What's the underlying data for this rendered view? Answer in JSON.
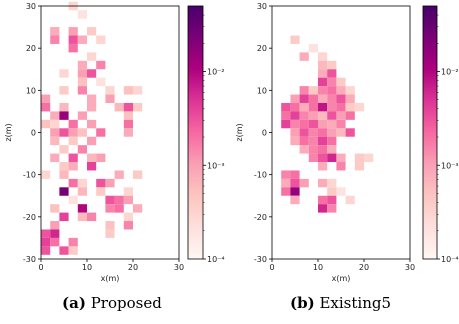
{
  "captions": [
    {
      "tag": "(a)",
      "text": "Proposed"
    },
    {
      "tag": "(b)",
      "text": "Existing5"
    }
  ],
  "chart_data": [
    {
      "type": "heatmap",
      "title": "",
      "xlabel": "x(m)",
      "ylabel": "z(m)",
      "xlim": [
        0,
        30
      ],
      "ylim": [
        -30,
        30
      ],
      "xticks": [
        "0",
        "10",
        "20",
        "30"
      ],
      "yticks": [
        "30",
        "20",
        "10",
        "0",
        "-10",
        "-20",
        "-30"
      ],
      "cell_size": 2,
      "colorbar": {
        "scale": "log",
        "min": 0.0001,
        "max": 0.05,
        "tick_values": [
          0.0001,
          0.001,
          0.01
        ],
        "tick_labels": [
          "10⁻⁴",
          "10⁻³",
          "10⁻²"
        ]
      },
      "cells": [
        [
          6,
          29,
          0.0003
        ],
        [
          8,
          27,
          0.0002
        ],
        [
          2,
          23,
          0.0008
        ],
        [
          6,
          23,
          0.001
        ],
        [
          10,
          23,
          0.0004
        ],
        [
          2,
          21,
          0.0015
        ],
        [
          6,
          21,
          0.003
        ],
        [
          8,
          21,
          0.0008
        ],
        [
          12,
          21,
          0.0003
        ],
        [
          6,
          19,
          0.002
        ],
        [
          10,
          17,
          0.0003
        ],
        [
          8,
          15,
          0.0008
        ],
        [
          12,
          15,
          0.0015
        ],
        [
          4,
          13,
          0.0003
        ],
        [
          8,
          13,
          0.001
        ],
        [
          10,
          13,
          0.003
        ],
        [
          8,
          11,
          0.0005
        ],
        [
          12,
          11,
          0.0002
        ],
        [
          4,
          9,
          0.0004
        ],
        [
          8,
          9,
          0.0015
        ],
        [
          14,
          9,
          0.0003
        ],
        [
          18,
          9,
          0.0005
        ],
        [
          20,
          9,
          0.0003
        ],
        [
          0,
          7,
          0.001
        ],
        [
          10,
          7,
          0.0008
        ],
        [
          14,
          7,
          0.001
        ],
        [
          0,
          5,
          0.002
        ],
        [
          4,
          5,
          0.0006
        ],
        [
          10,
          5,
          0.0008
        ],
        [
          16,
          5,
          0.0006
        ],
        [
          18,
          5,
          0.003
        ],
        [
          20,
          5,
          0.0004
        ],
        [
          2,
          3,
          0.0008
        ],
        [
          4,
          3,
          0.015
        ],
        [
          8,
          3,
          0.001
        ],
        [
          18,
          3,
          0.0005
        ],
        [
          0,
          1,
          0.0005
        ],
        [
          2,
          1,
          0.0003
        ],
        [
          6,
          1,
          0.002
        ],
        [
          10,
          1,
          0.001
        ],
        [
          18,
          1,
          0.002
        ],
        [
          2,
          -1,
          0.001
        ],
        [
          4,
          -1,
          0.003
        ],
        [
          6,
          -1,
          0.001
        ],
        [
          8,
          -1,
          0.0005
        ],
        [
          12,
          -1,
          0.002
        ],
        [
          18,
          -1,
          0.0008
        ],
        [
          2,
          -3,
          0.0006
        ],
        [
          6,
          -3,
          0.0004
        ],
        [
          10,
          -3,
          0.001
        ],
        [
          4,
          -5,
          0.0004
        ],
        [
          8,
          -5,
          0.0015
        ],
        [
          2,
          -7,
          0.0008
        ],
        [
          6,
          -7,
          0.003
        ],
        [
          10,
          -7,
          0.0006
        ],
        [
          12,
          -7,
          0.001
        ],
        [
          4,
          -9,
          0.0004
        ],
        [
          6,
          -9,
          0.0008
        ],
        [
          10,
          -9,
          0.004
        ],
        [
          0,
          -11,
          0.0003
        ],
        [
          4,
          -11,
          0.0006
        ],
        [
          16,
          -11,
          0.0008
        ],
        [
          20,
          -11,
          0.0004
        ],
        [
          6,
          -13,
          0.002
        ],
        [
          8,
          -13,
          0.0003
        ],
        [
          12,
          -13,
          0.003
        ],
        [
          14,
          -13,
          0.001
        ],
        [
          4,
          -15,
          0.025
        ],
        [
          8,
          -15,
          0.0006
        ],
        [
          12,
          -15,
          0.0004
        ],
        [
          18,
          -15,
          0.0003
        ],
        [
          6,
          -17,
          0.0002
        ],
        [
          14,
          -17,
          0.003
        ],
        [
          16,
          -17,
          0.002
        ],
        [
          18,
          -17,
          0.001
        ],
        [
          2,
          -19,
          0.0005
        ],
        [
          8,
          -19,
          0.01
        ],
        [
          14,
          -19,
          0.0015
        ],
        [
          16,
          -19,
          0.002
        ],
        [
          20,
          -19,
          0.0008
        ],
        [
          4,
          -21,
          0.004
        ],
        [
          8,
          -21,
          0.0006
        ],
        [
          10,
          -21,
          0.0015
        ],
        [
          18,
          -21,
          0.0003
        ],
        [
          2,
          -23,
          0.001
        ],
        [
          14,
          -23,
          0.0005
        ],
        [
          18,
          -23,
          0.0015
        ],
        [
          0,
          -25,
          0.003
        ],
        [
          2,
          -25,
          0.006
        ],
        [
          14,
          -25,
          0.0004
        ],
        [
          0,
          -27,
          0.004
        ],
        [
          2,
          -27,
          0.002
        ],
        [
          6,
          -27,
          0.0015
        ],
        [
          0,
          -29,
          0.003
        ],
        [
          4,
          -29,
          0.003
        ],
        [
          6,
          -29,
          0.0004
        ]
      ]
    },
    {
      "type": "heatmap",
      "title": "",
      "xlabel": "x(m)",
      "ylabel": "z(m)",
      "xlim": [
        0,
        30
      ],
      "ylim": [
        -30,
        30
      ],
      "xticks": [
        "0",
        "10",
        "20",
        "30"
      ],
      "yticks": [
        "30",
        "20",
        "10",
        "0",
        "-10",
        "-20",
        "-30"
      ],
      "cell_size": 2,
      "colorbar": {
        "scale": "log",
        "min": 0.0001,
        "max": 0.05,
        "tick_values": [
          0.0001,
          0.001,
          0.01
        ],
        "tick_labels": [
          "10⁻⁴",
          "10⁻³",
          "10⁻²"
        ]
      },
      "cells": [
        [
          4,
          21,
          0.0004
        ],
        [
          6,
          17,
          0.0008
        ],
        [
          8,
          19,
          0.0002
        ],
        [
          10,
          17,
          0.0003
        ],
        [
          10,
          15,
          0.0006
        ],
        [
          12,
          15,
          0.0004
        ],
        [
          10,
          13,
          0.0008
        ],
        [
          12,
          13,
          0.003
        ],
        [
          10,
          11,
          0.004
        ],
        [
          12,
          11,
          0.0015
        ],
        [
          14,
          11,
          0.0004
        ],
        [
          6,
          9,
          0.0015
        ],
        [
          8,
          9,
          0.0004
        ],
        [
          10,
          9,
          0.0015
        ],
        [
          12,
          9,
          0.002
        ],
        [
          14,
          9,
          0.0008
        ],
        [
          16,
          9,
          0.0003
        ],
        [
          4,
          7,
          0.001
        ],
        [
          6,
          7,
          0.004
        ],
        [
          8,
          7,
          0.002
        ],
        [
          10,
          7,
          0.0008
        ],
        [
          12,
          7,
          0.0015
        ],
        [
          14,
          7,
          0.003
        ],
        [
          16,
          7,
          0.0008
        ],
        [
          2,
          5,
          0.003
        ],
        [
          4,
          5,
          0.002
        ],
        [
          6,
          5,
          0.0008
        ],
        [
          8,
          5,
          0.002
        ],
        [
          10,
          5,
          0.008
        ],
        [
          12,
          5,
          0.0015
        ],
        [
          14,
          5,
          0.002
        ],
        [
          16,
          5,
          0.0004
        ],
        [
          18,
          5,
          0.0003
        ],
        [
          2,
          3,
          0.002
        ],
        [
          4,
          3,
          0.004
        ],
        [
          6,
          3,
          0.0015
        ],
        [
          8,
          3,
          0.001
        ],
        [
          10,
          3,
          0.0006
        ],
        [
          12,
          3,
          0.003
        ],
        [
          14,
          3,
          0.001
        ],
        [
          16,
          3,
          0.002
        ],
        [
          2,
          1,
          0.004
        ],
        [
          4,
          1,
          0.0015
        ],
        [
          6,
          1,
          0.002
        ],
        [
          8,
          1,
          0.003
        ],
        [
          10,
          1,
          0.001
        ],
        [
          12,
          1,
          0.0008
        ],
        [
          14,
          1,
          0.0015
        ],
        [
          4,
          -1,
          0.001
        ],
        [
          6,
          -1,
          0.003
        ],
        [
          8,
          -1,
          0.0015
        ],
        [
          10,
          -1,
          0.002
        ],
        [
          12,
          -1,
          0.001
        ],
        [
          14,
          -1,
          0.0006
        ],
        [
          16,
          -1,
          0.003
        ],
        [
          4,
          -3,
          0.0008
        ],
        [
          6,
          -3,
          0.002
        ],
        [
          8,
          -3,
          0.0015
        ],
        [
          10,
          -3,
          0.004
        ],
        [
          12,
          -3,
          0.002
        ],
        [
          6,
          -5,
          0.0008
        ],
        [
          8,
          -5,
          0.0015
        ],
        [
          10,
          -5,
          0.002
        ],
        [
          12,
          -5,
          0.0008
        ],
        [
          8,
          -7,
          0.0015
        ],
        [
          10,
          -7,
          0.003
        ],
        [
          12,
          -7,
          0.006
        ],
        [
          14,
          -7,
          0.0008
        ],
        [
          18,
          -7,
          0.0004
        ],
        [
          20,
          -7,
          0.0003
        ],
        [
          10,
          -9,
          0.0008
        ],
        [
          14,
          -9,
          0.0015
        ],
        [
          18,
          -9,
          0.0004
        ],
        [
          2,
          -11,
          0.0015
        ],
        [
          4,
          -11,
          0.002
        ],
        [
          2,
          -13,
          0.0008
        ],
        [
          4,
          -13,
          0.003
        ],
        [
          6,
          -13,
          0.001
        ],
        [
          10,
          -13,
          0.0008
        ],
        [
          12,
          -13,
          0.0003
        ],
        [
          2,
          -15,
          0.002
        ],
        [
          4,
          -15,
          0.015
        ],
        [
          12,
          -15,
          0.0004
        ],
        [
          14,
          -15,
          0.0002
        ],
        [
          4,
          -17,
          0.0008
        ],
        [
          10,
          -17,
          0.002
        ],
        [
          12,
          -17,
          0.003
        ],
        [
          16,
          -17,
          0.0003
        ],
        [
          10,
          -19,
          0.006
        ],
        [
          12,
          -19,
          0.0015
        ]
      ]
    }
  ]
}
